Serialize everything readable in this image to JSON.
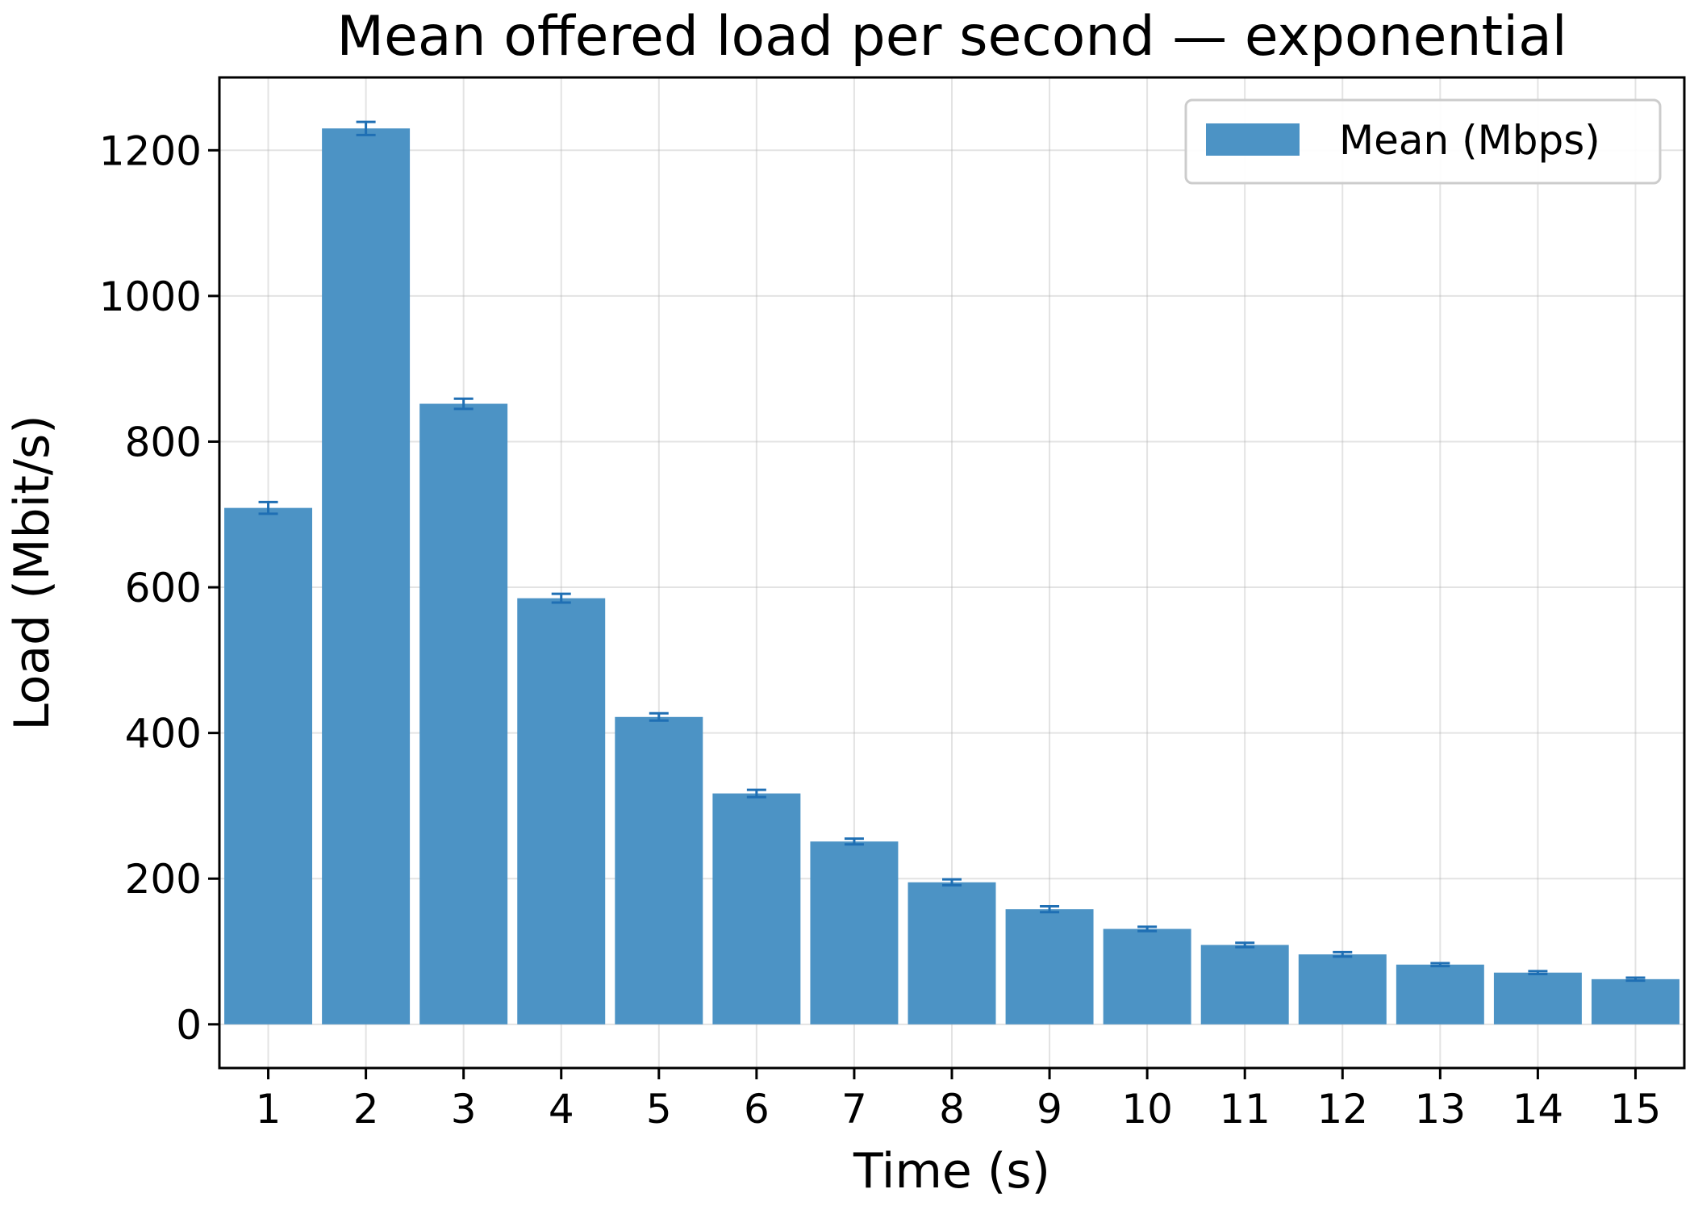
{
  "chart_data": {
    "type": "bar",
    "title": "Mean offered load per second — exponential",
    "xlabel": "Time (s)",
    "ylabel": "Load (Mbit/s)",
    "categories": [
      "1",
      "2",
      "3",
      "4",
      "5",
      "6",
      "7",
      "8",
      "9",
      "10",
      "11",
      "12",
      "13",
      "14",
      "15"
    ],
    "series": [
      {
        "name": "Mean (Mbps)",
        "values": [
          709,
          1230,
          852,
          585,
          422,
          317,
          251,
          195,
          158,
          131,
          109,
          96,
          82,
          71,
          62
        ],
        "errors": [
          8,
          9,
          7,
          6,
          5,
          5,
          4,
          4,
          4,
          3,
          3,
          3,
          2,
          2,
          2
        ],
        "color": "#4c93c5",
        "error_color": "#1f6fb4"
      }
    ],
    "ylim": [
      -60,
      1300
    ],
    "yticks": [
      0,
      200,
      400,
      600,
      800,
      1000,
      1200
    ],
    "grid": true,
    "legend_position": "top-right"
  }
}
